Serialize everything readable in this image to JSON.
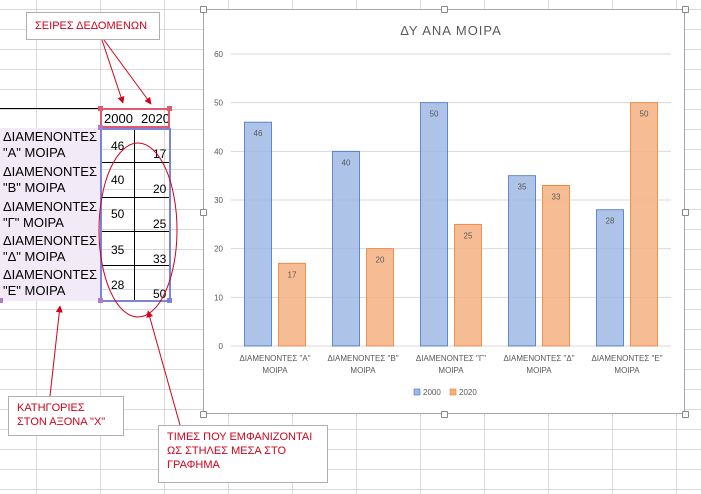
{
  "sheet": {
    "header_2000": "2000",
    "header_2020": "2020",
    "rows": [
      {
        "line1": "ΔΙΑΜΕΝΟΝΤΕΣ",
        "line2": "\"Α\" ΜΟΙΡΑ",
        "v2000": "46",
        "v2020": "17"
      },
      {
        "line1": "ΔΙΑΜΕΝΟΝΤΕΣ",
        "line2": "\"Β\" ΜΟΙΡΑ",
        "v2000": "40",
        "v2020": "20"
      },
      {
        "line1": "ΔΙΑΜΕΝΟΝΤΕΣ",
        "line2": "\"Γ\" ΜΟΙΡΑ",
        "v2000": "50",
        "v2020": "25"
      },
      {
        "line1": "ΔΙΑΜΕΝΟΝΤΕΣ",
        "line2": "\"Δ\" ΜΟΙΡΑ",
        "v2000": "35",
        "v2020": "33"
      },
      {
        "line1": "ΔΙΑΜΕΝΟΝΤΕΣ",
        "line2": "\"Ε\" ΜΟΙΡΑ",
        "v2000": "28",
        "v2020": "50"
      }
    ]
  },
  "callouts": {
    "series": "ΣΕΙΡΕΣ ΔΕΔΟΜΕΝΩΝ",
    "categories_line1": "ΚΑΤΗΓΟΡΙΕΣ",
    "categories_line2": "ΣΤΟΝ ΑΞΟΝΑ \"Χ\"",
    "values_line1": "ΤΙΜΕΣ ΠΟΥ ΕΜΦΑΝΙΖΟΝΤΑΙ",
    "values_line2": "ΩΣ ΣΤΗΛΕΣ ΜΕΣΑ ΣΤΟ",
    "values_line3": "ΓΡΑΦΗΜΑ"
  },
  "colors": {
    "annotation_red": "#d0021b",
    "series_2000_fill": "#9fb9e3",
    "series_2000_border": "#4472c4",
    "series_2020_fill": "#f4b183",
    "series_2020_border": "#ed7d31",
    "category_fill": "#f2eaf7",
    "chart_text": "#595959"
  },
  "chart_data": {
    "type": "bar",
    "title": "ΔΥ ΑΝΑ ΜΟΙΡΑ",
    "categories": [
      [
        "ΔΙΑΜΕΝΟΝΤΕΣ \"Α\"",
        "ΜΟΙΡΑ"
      ],
      [
        "ΔΙΑΜΕΝΟΝΤΕΣ \"Β\"",
        "ΜΟΙΡΑ"
      ],
      [
        "ΔΙΑΜΕΝΟΝΤΕΣ \"Γ\"",
        "ΜΟΙΡΑ"
      ],
      [
        "ΔΙΑΜΕΝΟΝΤΕΣ \"Δ\"",
        "ΜΟΙΡΑ"
      ],
      [
        "ΔΙΑΜΕΝΟΝΤΕΣ \"Ε\"",
        "ΜΟΙΡΑ"
      ]
    ],
    "series": [
      {
        "name": "2000",
        "values": [
          46,
          40,
          50,
          35,
          28
        ]
      },
      {
        "name": "2020",
        "values": [
          17,
          20,
          25,
          33,
          50
        ]
      }
    ],
    "ylim": [
      0,
      60
    ],
    "yticks": [
      0,
      10,
      20,
      30,
      40,
      50,
      60
    ],
    "grid": true,
    "legend": "bottom",
    "data_labels": true
  }
}
